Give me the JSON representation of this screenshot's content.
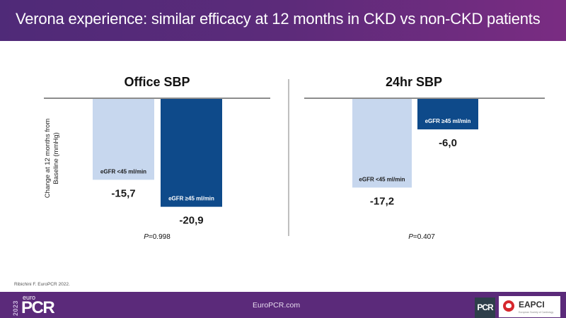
{
  "header": {
    "title": "Verona experience: similar efficacy at 12 months in CKD vs non-CKD patients"
  },
  "ylabel_line1": "Change at 12 months from",
  "ylabel_line2": "Baseline (mmHg)",
  "colors": {
    "light_bar": "#c7d7ee",
    "dark_bar": "#0e4a8a",
    "baseline": "#8c8c8c",
    "header": "#5c2b7a"
  },
  "chart_data": [
    {
      "type": "bar",
      "title": "Office SBP",
      "ylabel": "Change at 12 months from Baseline (mmHg)",
      "categories": [
        "eGFR <45 ml/min",
        "eGFR ≥45 ml/min"
      ],
      "values": [
        -15.7,
        -20.9
      ],
      "value_labels": [
        "-15,7",
        "-20,9"
      ],
      "p_value_prefix": "P",
      "p_value": "=0.998",
      "ylim": [
        -22,
        0
      ],
      "grid": false
    },
    {
      "type": "bar",
      "title": "24hr SBP",
      "ylabel": "Change at 12 months from Baseline (mmHg)",
      "categories": [
        "eGFR <45 ml/min",
        "eGFR ≥45 ml/min"
      ],
      "values": [
        -17.2,
        -6.0
      ],
      "value_labels": [
        "-17,2",
        "-6,0"
      ],
      "p_value_prefix": "P",
      "p_value": "=0.407",
      "ylim": [
        -22,
        0
      ],
      "grid": false
    }
  ],
  "citation": "Ribichini F. EuroPCR 2022.",
  "footer": {
    "year": "2023",
    "logo_small": "euro",
    "logo_big": "PCR",
    "url": "EuroPCR.com",
    "pcr_badge": "PCR",
    "eapci": "EAPCI",
    "eapci_sub": "European Society of Cardiology"
  }
}
